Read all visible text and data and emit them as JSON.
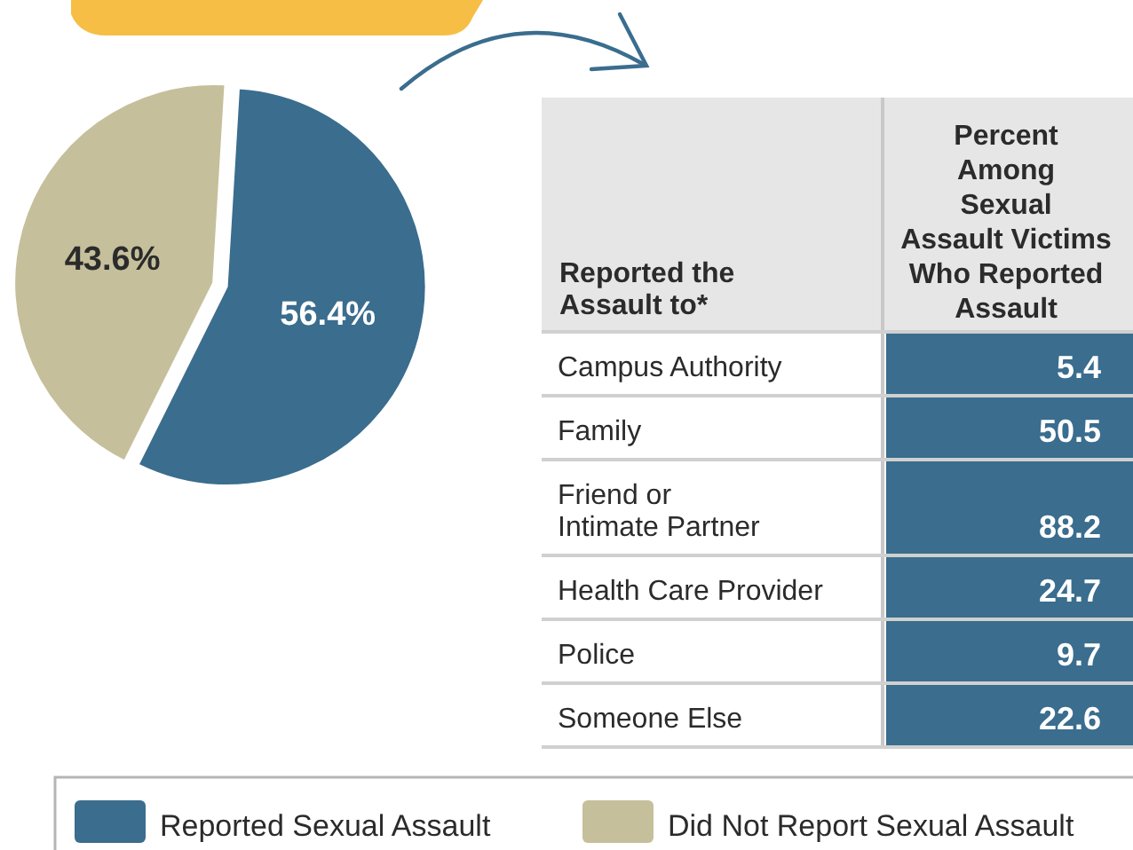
{
  "chart_data": [
    {
      "type": "pie",
      "categories": [
        "Reported Sexual Assault",
        "Did Not Report Sexual Assault"
      ],
      "values": [
        56.4,
        43.6
      ],
      "colors": [
        "#3a6d8e",
        "#c5bf9b"
      ],
      "value_labels": [
        "56.4%",
        "43.6%"
      ],
      "legend": "bottom"
    },
    {
      "type": "other",
      "xlabel": "Reported the\nAssault to*",
      "ylabel": "Percent\nAmong\nSexual\nAssault Victims\nWho Reported\nAssault",
      "categories": [
        "Campus Authority",
        "Family",
        "Friend or\nIntimate Partner",
        "Health Care Provider",
        "Police",
        "Someone Else"
      ],
      "values": [
        5.4,
        50.5,
        88.2,
        24.7,
        9.7,
        22.6
      ],
      "color": "#3a6d8e",
      "data_labels": true
    }
  ]
}
